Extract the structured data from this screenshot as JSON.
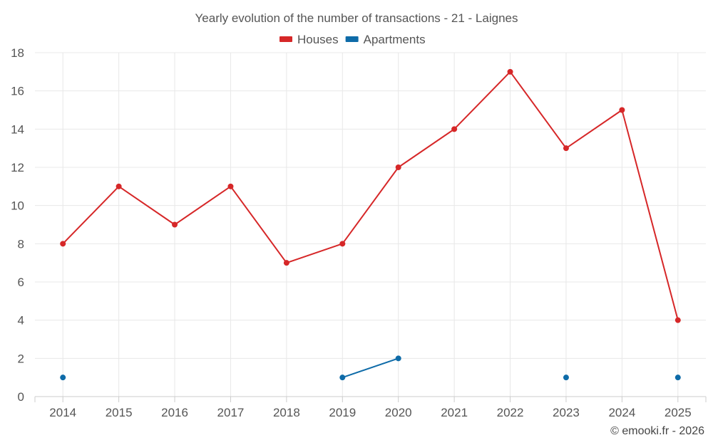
{
  "chart_data": {
    "type": "line",
    "title": "Yearly evolution of the number of transactions - 21 - Laignes",
    "xlabel": "",
    "ylabel": "",
    "categories": [
      "2014",
      "2015",
      "2016",
      "2017",
      "2018",
      "2019",
      "2020",
      "2021",
      "2022",
      "2023",
      "2024",
      "2025"
    ],
    "ylim": [
      0,
      18
    ],
    "yticks": [
      0,
      2,
      4,
      6,
      8,
      10,
      12,
      14,
      16,
      18
    ],
    "grid": true,
    "legend_position": "top-center",
    "series": [
      {
        "name": "Houses",
        "color": "#d62728",
        "values": [
          8,
          11,
          9,
          11,
          7,
          8,
          12,
          14,
          17,
          13,
          15,
          4
        ]
      },
      {
        "name": "Apartments",
        "color": "#0e6ba8",
        "values": [
          1,
          null,
          null,
          null,
          null,
          1,
          2,
          null,
          null,
          1,
          null,
          1
        ]
      }
    ]
  },
  "credit": "© emooki.fr - 2026"
}
